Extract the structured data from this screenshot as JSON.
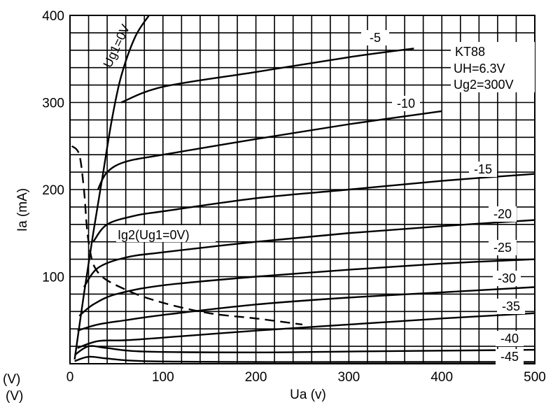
{
  "chart_data": {
    "type": "line",
    "title": "",
    "xlabel": "Ua (v)",
    "ylabel": "Ia  (mA)",
    "xlim": [
      0,
      500
    ],
    "ylim": [
      0,
      400
    ],
    "x_ticks": [
      0,
      100,
      200,
      300,
      400,
      500
    ],
    "y_ticks": [
      100,
      200,
      300,
      400
    ],
    "grid": true,
    "annotations": {
      "tube": "KT88",
      "heater": "UH=6.3V",
      "screen": "Ug2=300V",
      "left_units_1": "(V)",
      "left_units_2": "(V)"
    },
    "series": [
      {
        "name": "Ug1=0V",
        "x": [
          5,
          15,
          25,
          35,
          45,
          55,
          70,
          85
        ],
        "y": [
          5,
          80,
          150,
          215,
          280,
          330,
          375,
          400
        ]
      },
      {
        "name": "-5",
        "x": [
          55,
          100,
          200,
          300,
          370
        ],
        "y": [
          300,
          318,
          335,
          352,
          362
        ]
      },
      {
        "name": "-10",
        "x": [
          30,
          40,
          60,
          100,
          200,
          300,
          400
        ],
        "y": [
          200,
          220,
          232,
          240,
          258,
          275,
          290
        ]
      },
      {
        "name": "-15",
        "x": [
          25,
          40,
          70,
          100,
          200,
          300,
          400,
          500
        ],
        "y": [
          140,
          160,
          170,
          175,
          190,
          200,
          210,
          218
        ]
      },
      {
        "name": "-20",
        "x": [
          15,
          30,
          60,
          100,
          200,
          300,
          400,
          500
        ],
        "y": [
          88,
          110,
          122,
          128,
          140,
          150,
          158,
          165
        ]
      },
      {
        "name": "-25",
        "x": [
          10,
          25,
          50,
          100,
          200,
          300,
          400,
          500
        ],
        "y": [
          55,
          68,
          80,
          90,
          100,
          108,
          115,
          120
        ]
      },
      {
        "name": "-30",
        "x": [
          8,
          30,
          60,
          100,
          200,
          300,
          400,
          500
        ],
        "y": [
          38,
          45,
          50,
          56,
          68,
          76,
          82,
          88
        ]
      },
      {
        "name": "-35",
        "x": [
          8,
          30,
          60,
          100,
          200,
          300,
          400,
          500
        ],
        "y": [
          18,
          26,
          27,
          30,
          38,
          45,
          52,
          58
        ]
      },
      {
        "name": "-40",
        "x": [
          5,
          20,
          40,
          80,
          200,
          300,
          400,
          500
        ],
        "y": [
          10,
          20,
          18,
          14,
          13,
          14,
          15,
          16
        ]
      },
      {
        "name": "-45",
        "x": [
          5,
          20,
          40,
          80,
          200,
          300,
          400,
          500
        ],
        "y": [
          3,
          8,
          6,
          3,
          2,
          2,
          2,
          2
        ]
      },
      {
        "name": "Ig2(Ug1=0V)",
        "x": [
          2,
          10,
          15,
          20,
          30,
          60,
          100,
          150,
          200,
          250
        ],
        "y": [
          250,
          240,
          200,
          140,
          105,
          85,
          70,
          58,
          52,
          45
        ]
      }
    ]
  }
}
